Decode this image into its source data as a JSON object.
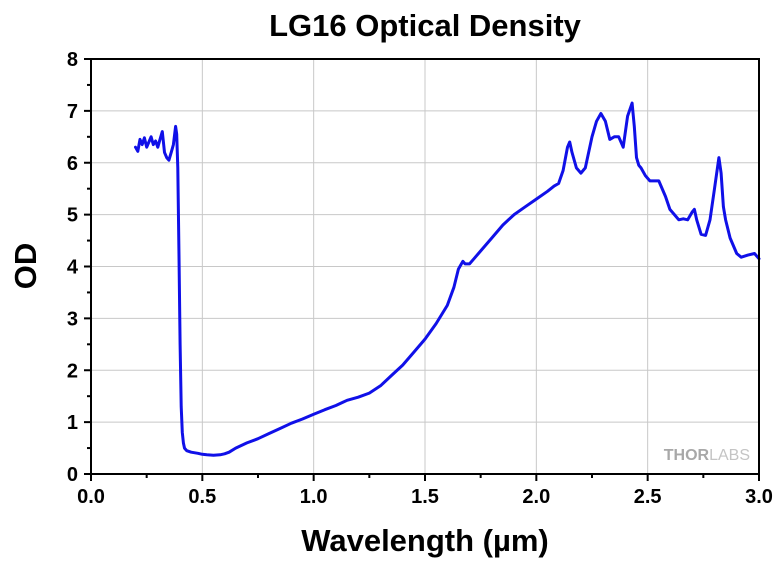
{
  "chart_data": {
    "type": "line",
    "title": "LG16 Optical Density",
    "xlabel": "Wavelength (µm)",
    "ylabel": "OD",
    "xlim": [
      0.0,
      3.0
    ],
    "ylim": [
      0,
      8
    ],
    "xticks": [
      0.0,
      0.5,
      1.0,
      1.5,
      2.0,
      2.5,
      3.0
    ],
    "xtick_labels": [
      "0.0",
      "0.5",
      "1.0",
      "1.5",
      "2.0",
      "2.5",
      "3.0"
    ],
    "yticks": [
      0,
      1,
      2,
      3,
      4,
      5,
      6,
      7,
      8
    ],
    "ytick_labels": [
      "0",
      "1",
      "2",
      "3",
      "4",
      "5",
      "6",
      "7",
      "8"
    ],
    "grid": true,
    "legend": "none",
    "series": [
      {
        "color": "#1010e8",
        "x": [
          0.2,
          0.21,
          0.22,
          0.23,
          0.24,
          0.25,
          0.26,
          0.27,
          0.28,
          0.29,
          0.3,
          0.31,
          0.32,
          0.33,
          0.34,
          0.35,
          0.36,
          0.37,
          0.38,
          0.385,
          0.39,
          0.395,
          0.4,
          0.405,
          0.41,
          0.415,
          0.42,
          0.43,
          0.45,
          0.48,
          0.5,
          0.52,
          0.55,
          0.58,
          0.6,
          0.62,
          0.65,
          0.7,
          0.75,
          0.8,
          0.85,
          0.9,
          0.95,
          1.0,
          1.05,
          1.1,
          1.13,
          1.15,
          1.2,
          1.25,
          1.3,
          1.35,
          1.4,
          1.45,
          1.5,
          1.55,
          1.6,
          1.63,
          1.65,
          1.67,
          1.68,
          1.7,
          1.72,
          1.75,
          1.8,
          1.85,
          1.9,
          1.95,
          2.0,
          2.05,
          2.08,
          2.1,
          2.12,
          2.14,
          2.15,
          2.16,
          2.18,
          2.2,
          2.22,
          2.25,
          2.27,
          2.29,
          2.31,
          2.33,
          2.35,
          2.37,
          2.39,
          2.41,
          2.43,
          2.44,
          2.45,
          2.46,
          2.47,
          2.49,
          2.51,
          2.53,
          2.55,
          2.58,
          2.6,
          2.62,
          2.64,
          2.66,
          2.68,
          2.7,
          2.71,
          2.72,
          2.74,
          2.76,
          2.78,
          2.8,
          2.82,
          2.83,
          2.84,
          2.85,
          2.87,
          2.9,
          2.92,
          2.95,
          2.98,
          3.0
        ],
        "y": [
          6.3,
          6.22,
          6.45,
          6.35,
          6.48,
          6.3,
          6.4,
          6.5,
          6.35,
          6.42,
          6.3,
          6.45,
          6.6,
          6.2,
          6.1,
          6.05,
          6.2,
          6.35,
          6.7,
          6.55,
          5.9,
          4.2,
          2.5,
          1.3,
          0.8,
          0.6,
          0.5,
          0.45,
          0.42,
          0.4,
          0.38,
          0.37,
          0.36,
          0.37,
          0.39,
          0.42,
          0.5,
          0.6,
          0.68,
          0.78,
          0.88,
          0.98,
          1.06,
          1.15,
          1.24,
          1.32,
          1.38,
          1.42,
          1.48,
          1.56,
          1.7,
          1.9,
          2.1,
          2.35,
          2.6,
          2.9,
          3.25,
          3.6,
          3.95,
          4.1,
          4.05,
          4.05,
          4.15,
          4.3,
          4.55,
          4.8,
          5.0,
          5.15,
          5.3,
          5.45,
          5.55,
          5.6,
          5.85,
          6.3,
          6.4,
          6.2,
          5.9,
          5.8,
          5.9,
          6.5,
          6.8,
          6.95,
          6.8,
          6.45,
          6.5,
          6.5,
          6.3,
          6.9,
          7.15,
          6.7,
          6.1,
          5.95,
          5.9,
          5.75,
          5.65,
          5.65,
          5.65,
          5.35,
          5.1,
          5.0,
          4.9,
          4.92,
          4.9,
          5.05,
          5.1,
          4.9,
          4.62,
          4.6,
          4.9,
          5.5,
          6.1,
          5.8,
          5.15,
          4.9,
          4.55,
          4.25,
          4.18,
          4.22,
          4.25,
          4.15
        ]
      }
    ]
  },
  "watermark": {
    "brand_bold": "THOR",
    "brand_thin": "LABS"
  }
}
